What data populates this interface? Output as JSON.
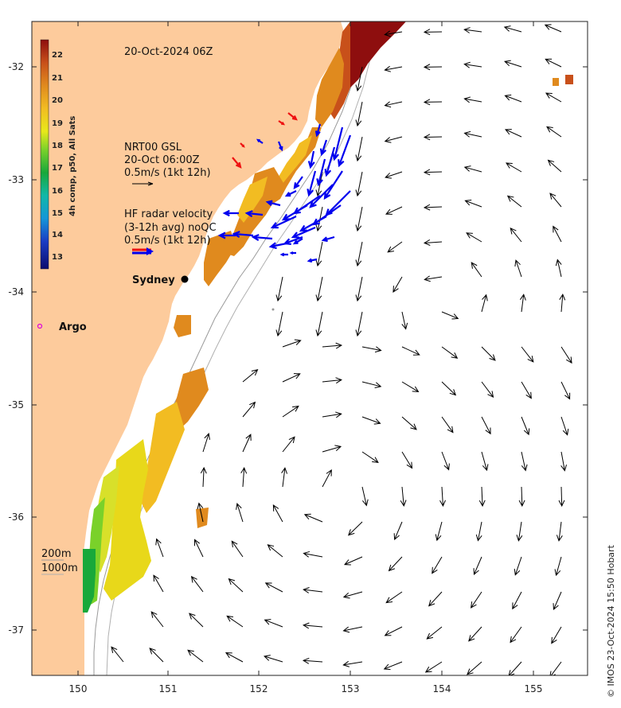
{
  "map": {
    "date_label": "20-Oct-2024 06Z",
    "lon_ticks": [
      "150",
      "151",
      "152",
      "153",
      "154",
      "155"
    ],
    "lat_ticks": [
      "-32",
      "-33",
      "-34",
      "-35",
      "-36",
      "-37"
    ],
    "colorbar": {
      "title": "4h comp, p50, All Sats",
      "ticks": [
        "22",
        "21",
        "20",
        "19",
        "18",
        "17",
        "16",
        "15",
        "14",
        "13"
      ],
      "range": [
        12.5,
        22.5
      ]
    },
    "gsl_legend": {
      "line1": "NRT00 GSL",
      "line2": "20-Oct 06:00Z",
      "line3": "0.5m/s (1kt 12h)"
    },
    "hf_legend": {
      "line1": "HF radar velocity",
      "line2": "(3-12h avg) noQC",
      "line3": "0.5m/s (1kt 12h)"
    },
    "city_label": "Sydney",
    "argo_label": "Argo",
    "depth_legend": {
      "line1": "200m",
      "line2": "1000m"
    },
    "credit": "© IMOS 23-Oct-2024 15:50 Hobart",
    "colors": {
      "land": "#fdcb9c",
      "ocean": "#ffffff",
      "gsl_arrow": "#000000",
      "hf_arrow": "#0000ee",
      "hf_arrow_alt": "#ee1111",
      "argo": "#dd00dd"
    }
  }
}
